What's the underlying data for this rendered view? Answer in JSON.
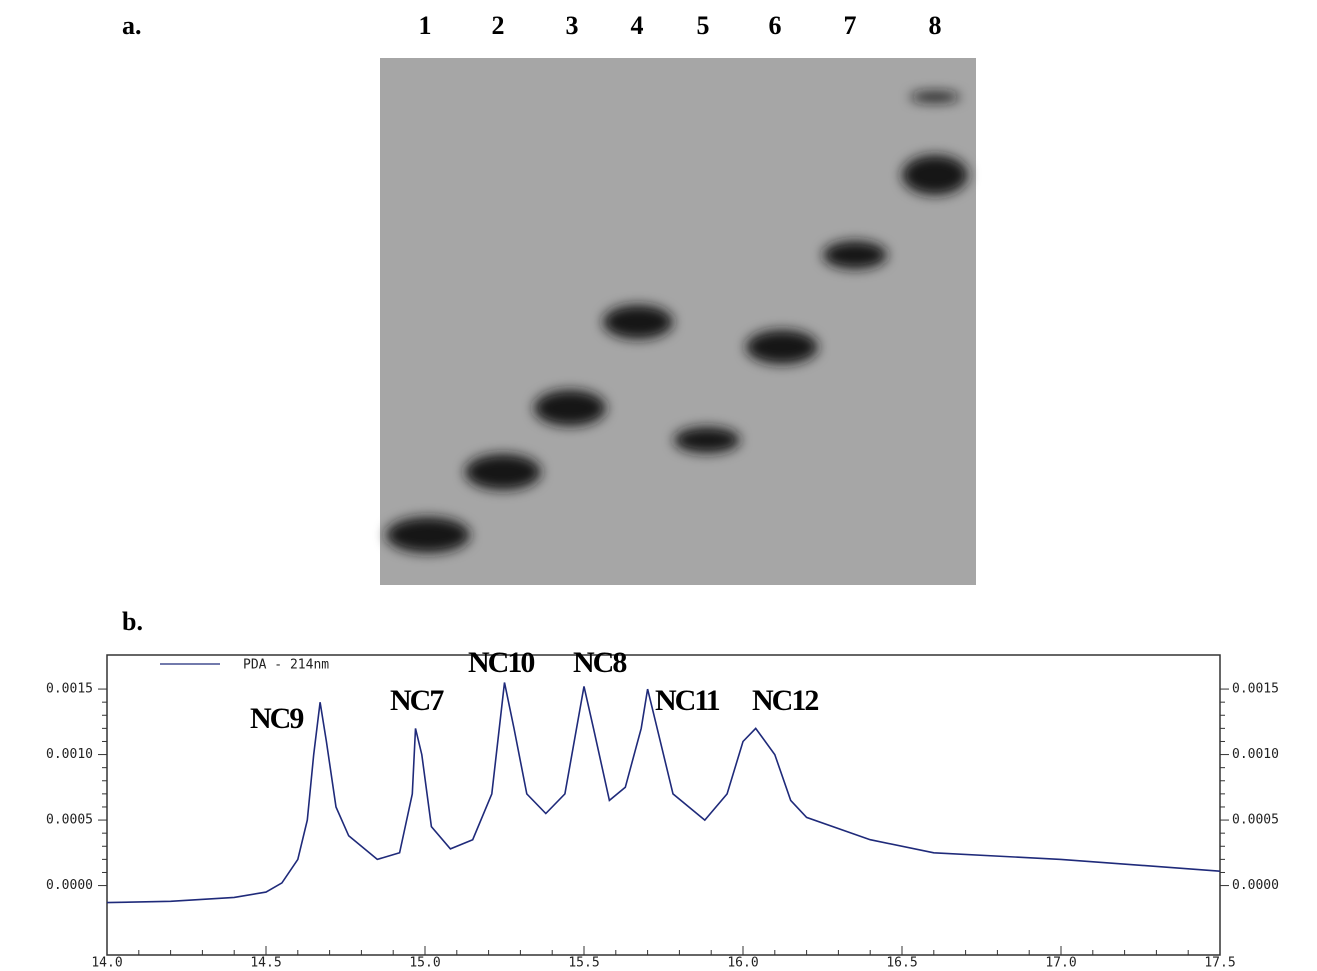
{
  "gel": {
    "label": "a.",
    "lanes": [
      "1",
      "2",
      "3",
      "4",
      "5",
      "6",
      "7",
      "8"
    ]
  },
  "panel_b_label": "b.",
  "chart_data": {
    "type": "line",
    "annotations": [
      "NC9",
      "NC7",
      "NC10",
      "NC8",
      "NC11",
      "NC12"
    ],
    "x": [
      14.0,
      14.2,
      14.4,
      14.5,
      14.55,
      14.6,
      14.63,
      14.65,
      14.67,
      14.69,
      14.72,
      14.76,
      14.85,
      14.92,
      14.96,
      14.97,
      14.99,
      15.02,
      15.08,
      15.15,
      15.21,
      15.25,
      15.28,
      15.32,
      15.38,
      15.44,
      15.5,
      15.53,
      15.58,
      15.63,
      15.68,
      15.7,
      15.72,
      15.78,
      15.88,
      15.95,
      16.0,
      16.04,
      16.1,
      16.15,
      16.2,
      16.4,
      16.6,
      17.0,
      17.5
    ],
    "series": [
      {
        "name": "PDA - 214nm",
        "color": "#1f2a7a",
        "values": [
          -0.00013,
          -0.00012,
          -9e-05,
          -5e-05,
          2e-05,
          0.0002,
          0.0005,
          0.001,
          0.0014,
          0.0011,
          0.0006,
          0.00038,
          0.0002,
          0.00025,
          0.0007,
          0.0012,
          0.001,
          0.00045,
          0.00028,
          0.00035,
          0.0007,
          0.00155,
          0.0012,
          0.0007,
          0.00055,
          0.0007,
          0.00152,
          0.0012,
          0.00065,
          0.00075,
          0.0012,
          0.0015,
          0.0013,
          0.0007,
          0.0005,
          0.0007,
          0.0011,
          0.0012,
          0.001,
          0.00065,
          0.00052,
          0.00035,
          0.00025,
          0.0002,
          0.00011
        ]
      }
    ],
    "xlim": [
      14.0,
      17.5
    ],
    "xticks": [
      {
        "value": 14,
        "label": "14.0"
      },
      14.5,
      {
        "value": 15,
        "label": "15.0"
      },
      15.5,
      {
        "value": 16,
        "label": "16.0"
      },
      16.5,
      {
        "value": 17,
        "label": "17.0"
      },
      17.5
    ],
    "ylim": [
      -0.00053,
      0.00176
    ],
    "yticks": [
      {
        "value": 0,
        "label": "0.0000"
      },
      0.0005,
      {
        "value": 0.001,
        "label": "0.0010"
      },
      0.0015
    ],
    "y2lim": [
      -0.00053,
      0.00176
    ],
    "y2ticks": [
      {
        "value": 0,
        "label": "0.0000"
      },
      0.0005,
      {
        "value": 0.001,
        "label": "0.0010"
      },
      0.0015
    ]
  }
}
